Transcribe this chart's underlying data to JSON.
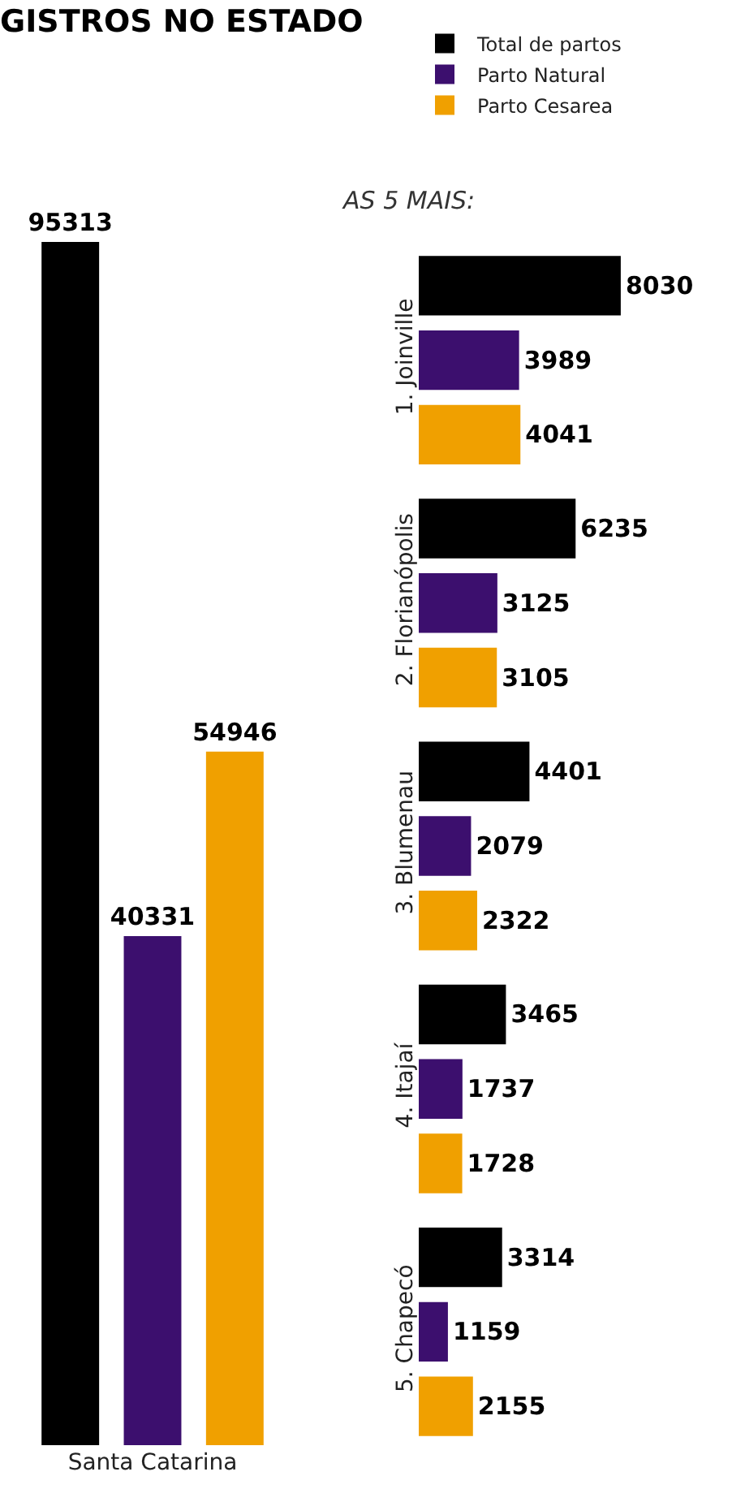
{
  "chart_data": [
    {
      "type": "bar",
      "title": "GISTROS NO ESTADO",
      "categories": [
        null,
        "Santa Catarina",
        null
      ],
      "tick_labels": "x",
      "data_labels": true,
      "grid": false,
      "values": [
        95313,
        40331,
        54946
      ],
      "colors": [
        "#000000",
        "#3c0f6e",
        "#f0a000"
      ]
    },
    {
      "type": "bar",
      "title": "AS 5 MAIS:",
      "orientation": "horizontal",
      "categories": [
        "1. Joinville",
        "2. Florianópolis",
        "3. Blumenau",
        "4. Itajaí",
        "5. Chapecó"
      ],
      "tick_labels": "y",
      "data_labels": true,
      "legend": "top right",
      "grid": false,
      "series": [
        {
          "name": "Total de partos",
          "color": "#000000",
          "values": [
            8030,
            6235,
            4401,
            3465,
            3314
          ]
        },
        {
          "name": "Parto Natural",
          "color": "#3c0f6e",
          "values": [
            3989,
            3125,
            2079,
            1737,
            1159
          ]
        },
        {
          "name": "Parto Cesarea",
          "color": "#f0a000",
          "values": [
            4041,
            3105,
            2322,
            1728,
            2155
          ]
        }
      ]
    }
  ]
}
